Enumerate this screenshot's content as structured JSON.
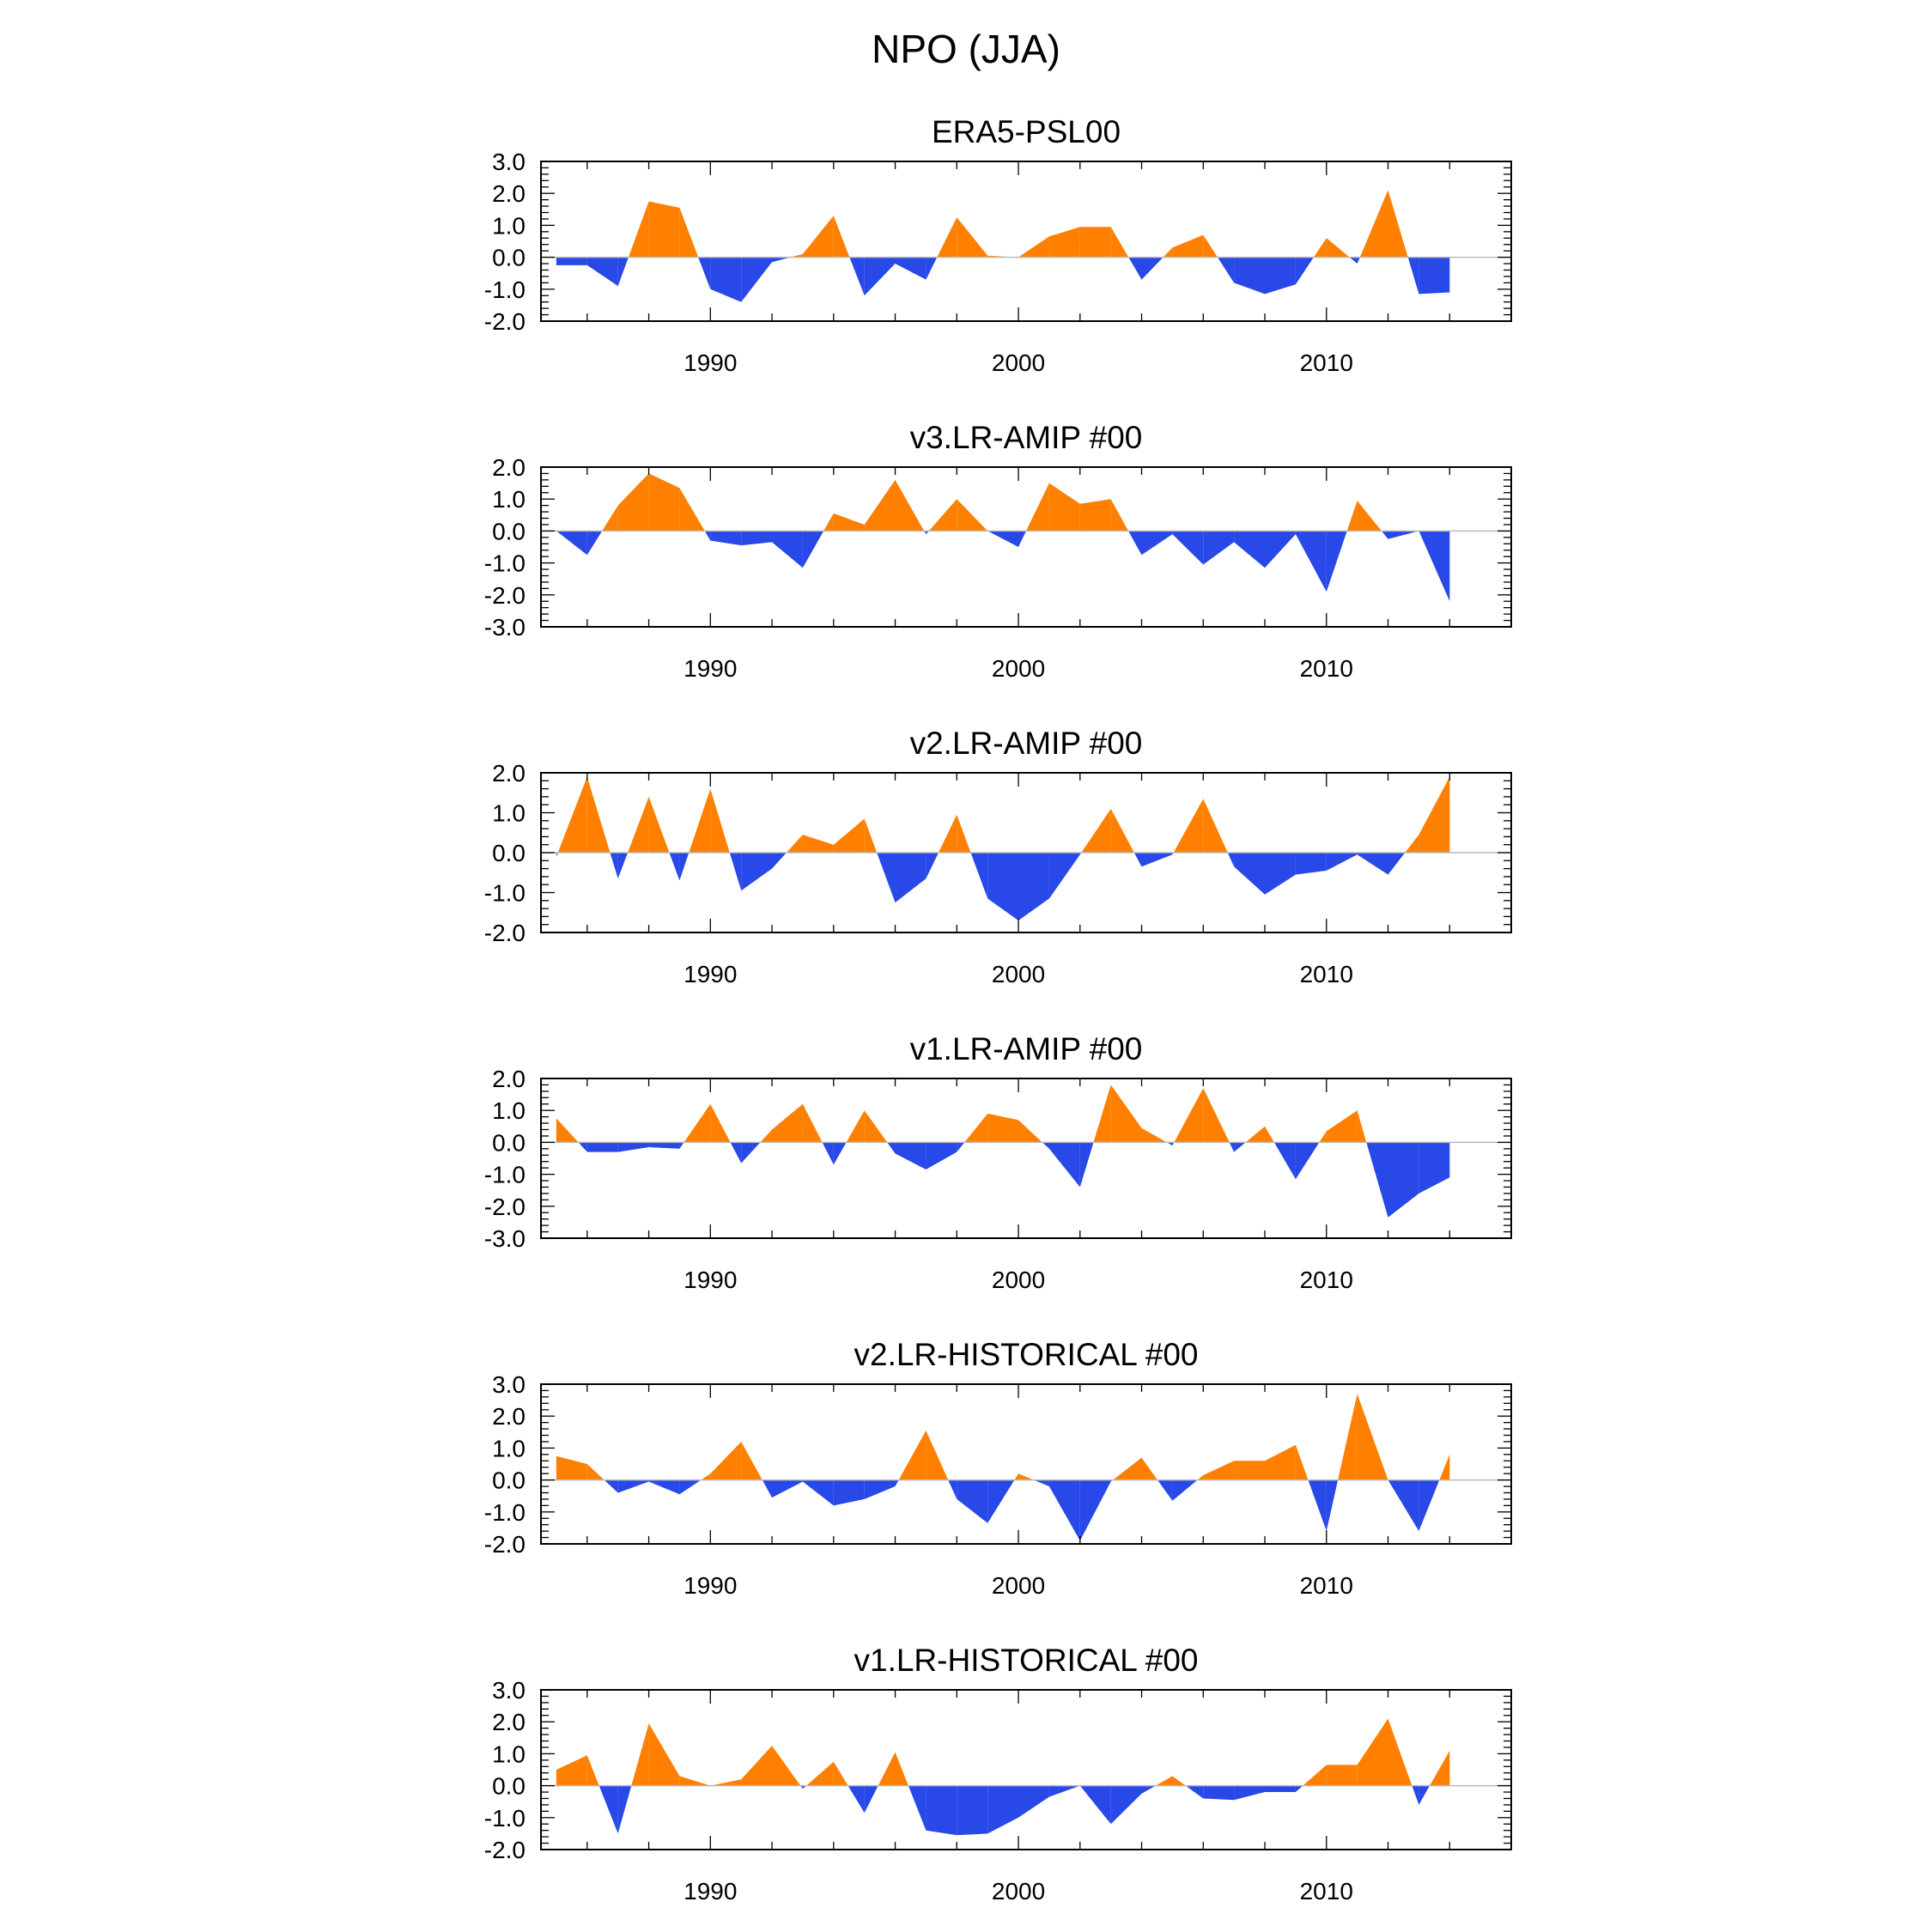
{
  "title": "NPO (JJA)",
  "colors": {
    "positive": "#ff8000",
    "negative": "#2848e8",
    "zero_line": "#bbbbbb",
    "axis": "#000000"
  },
  "chart_data": [
    {
      "type": "area",
      "title": "ERA5-PSL00",
      "x": [
        1985,
        1986,
        1987,
        1988,
        1989,
        1990,
        1991,
        1992,
        1993,
        1994,
        1995,
        1996,
        1997,
        1998,
        1999,
        2000,
        2001,
        2002,
        2003,
        2004,
        2005,
        2006,
        2007,
        2008,
        2009,
        2010,
        2011,
        2012,
        2013,
        2014
      ],
      "values": [
        -0.25,
        -0.25,
        -0.9,
        1.75,
        1.55,
        -1.0,
        -1.4,
        -0.15,
        0.1,
        1.3,
        -1.2,
        -0.2,
        -0.7,
        1.25,
        0.05,
        0.0,
        0.65,
        0.95,
        0.95,
        -0.7,
        0.3,
        0.7,
        -0.8,
        -1.15,
        -0.85,
        0.6,
        -0.2,
        2.1,
        -1.15,
        -1.1
      ],
      "ylim": [
        -2,
        3
      ],
      "yticks": [
        "3.0",
        "2.0",
        "1.0",
        "0.0",
        "-1.0",
        "-2.0"
      ],
      "ytick_values": [
        3,
        2,
        1,
        0,
        -1,
        -2
      ],
      "xlim": [
        1984.5,
        2016
      ],
      "xticks": [
        "1990",
        "2000",
        "2010"
      ],
      "xtick_values": [
        1990,
        2000,
        2010
      ]
    },
    {
      "type": "area",
      "title": "v3.LR-AMIP  #00",
      "x": [
        1985,
        1986,
        1987,
        1988,
        1989,
        1990,
        1991,
        1992,
        1993,
        1994,
        1995,
        1996,
        1997,
        1998,
        1999,
        2000,
        2001,
        2002,
        2003,
        2004,
        2005,
        2006,
        2007,
        2008,
        2009,
        2010,
        2011,
        2012,
        2013,
        2014
      ],
      "values": [
        0.0,
        -0.75,
        0.8,
        1.8,
        1.35,
        -0.3,
        -0.45,
        -0.35,
        -1.15,
        0.55,
        0.2,
        1.6,
        -0.1,
        1.0,
        0.0,
        -0.5,
        1.5,
        0.85,
        1.0,
        -0.75,
        -0.1,
        -1.05,
        -0.35,
        -1.15,
        -0.1,
        -1.9,
        0.95,
        -0.25,
        0.0,
        -2.2
      ],
      "ylim": [
        -3,
        2
      ],
      "yticks": [
        "2.0",
        "1.0",
        "0.0",
        "-1.0",
        "-2.0",
        "-3.0"
      ],
      "ytick_values": [
        2,
        1,
        0,
        -1,
        -2,
        -3
      ],
      "xlim": [
        1984.5,
        2016
      ],
      "xticks": [
        "1990",
        "2000",
        "2010"
      ],
      "xtick_values": [
        1990,
        2000,
        2010
      ]
    },
    {
      "type": "area",
      "title": "v2.LR-AMIP  #00",
      "x": [
        1985,
        1986,
        1987,
        1988,
        1989,
        1990,
        1991,
        1992,
        1993,
        1994,
        1995,
        1996,
        1997,
        1998,
        1999,
        2000,
        2001,
        2002,
        2003,
        2004,
        2005,
        2006,
        2007,
        2008,
        2009,
        2010,
        2011,
        2012,
        2013,
        2014
      ],
      "values": [
        -0.1,
        1.9,
        -0.65,
        1.4,
        -0.7,
        1.6,
        -0.95,
        -0.4,
        0.45,
        0.2,
        0.85,
        -1.25,
        -0.65,
        0.95,
        -1.15,
        -1.7,
        -1.15,
        -0.05,
        1.1,
        -0.35,
        -0.05,
        1.35,
        -0.35,
        -1.05,
        -0.55,
        -0.45,
        -0.05,
        -0.55,
        0.45,
        1.9
      ],
      "ylim": [
        -2,
        2
      ],
      "yticks": [
        "2.0",
        "1.0",
        "0.0",
        "-1.0",
        "-2.0"
      ],
      "ytick_values": [
        2,
        1,
        0,
        -1,
        -2
      ],
      "xlim": [
        1984.5,
        2016
      ],
      "xticks": [
        "1990",
        "2000",
        "2010"
      ],
      "xtick_values": [
        1990,
        2000,
        2010
      ]
    },
    {
      "type": "area",
      "title": "v1.LR-AMIP  #00",
      "x": [
        1985,
        1986,
        1987,
        1988,
        1989,
        1990,
        1991,
        1992,
        1993,
        1994,
        1995,
        1996,
        1997,
        1998,
        1999,
        2000,
        2001,
        2002,
        2003,
        2004,
        2005,
        2006,
        2007,
        2008,
        2009,
        2010,
        2011,
        2012,
        2013,
        2014
      ],
      "values": [
        0.75,
        -0.3,
        -0.3,
        -0.15,
        -0.2,
        1.2,
        -0.65,
        0.4,
        1.2,
        -0.7,
        1.0,
        -0.35,
        -0.85,
        -0.3,
        0.9,
        0.7,
        -0.2,
        -1.4,
        1.8,
        0.45,
        -0.1,
        1.7,
        -0.3,
        0.5,
        -1.15,
        0.35,
        1.0,
        -2.35,
        -1.6,
        -1.1
      ],
      "ylim": [
        -3,
        2
      ],
      "yticks": [
        "2.0",
        "1.0",
        "0.0",
        "-1.0",
        "-2.0",
        "-3.0"
      ],
      "ytick_values": [
        2,
        1,
        0,
        -1,
        -2,
        -3
      ],
      "xlim": [
        1984.5,
        2016
      ],
      "xticks": [
        "1990",
        "2000",
        "2010"
      ],
      "xtick_values": [
        1990,
        2000,
        2010
      ]
    },
    {
      "type": "area",
      "title": "v2.LR-HISTORICAL  #00",
      "x": [
        1985,
        1986,
        1987,
        1988,
        1989,
        1990,
        1991,
        1992,
        1993,
        1994,
        1995,
        1996,
        1997,
        1998,
        1999,
        2000,
        2001,
        2002,
        2003,
        2004,
        2005,
        2006,
        2007,
        2008,
        2009,
        2010,
        2011,
        2012,
        2013,
        2014
      ],
      "values": [
        0.75,
        0.5,
        -0.4,
        -0.05,
        -0.45,
        0.2,
        1.2,
        -0.55,
        -0.05,
        -0.8,
        -0.6,
        -0.2,
        1.55,
        -0.6,
        -1.35,
        0.2,
        -0.2,
        -1.9,
        -0.05,
        0.7,
        -0.65,
        0.15,
        0.6,
        0.6,
        1.1,
        -1.6,
        2.7,
        0.0,
        -1.6,
        0.8
      ],
      "ylim": [
        -2,
        3
      ],
      "yticks": [
        "3.0",
        "2.0",
        "1.0",
        "0.0",
        "-1.0",
        "-2.0"
      ],
      "ytick_values": [
        3,
        2,
        1,
        0,
        -1,
        -2
      ],
      "xlim": [
        1984.5,
        2016
      ],
      "xticks": [
        "1990",
        "2000",
        "2010"
      ],
      "xtick_values": [
        1990,
        2000,
        2010
      ]
    },
    {
      "type": "area",
      "title": "v1.LR-HISTORICAL  #00",
      "x": [
        1985,
        1986,
        1987,
        1988,
        1989,
        1990,
        1991,
        1992,
        1993,
        1994,
        1995,
        1996,
        1997,
        1998,
        1999,
        2000,
        2001,
        2002,
        2003,
        2004,
        2005,
        2006,
        2007,
        2008,
        2009,
        2010,
        2011,
        2012,
        2013,
        2014
      ],
      "values": [
        0.5,
        0.95,
        -1.5,
        1.95,
        0.3,
        0.0,
        0.2,
        1.25,
        -0.1,
        0.75,
        -0.85,
        1.05,
        -1.4,
        -1.55,
        -1.5,
        -1.0,
        -0.35,
        0.0,
        -1.2,
        -0.25,
        0.3,
        -0.4,
        -0.45,
        -0.2,
        -0.2,
        0.65,
        0.65,
        2.1,
        -0.6,
        1.1
      ],
      "ylim": [
        -2,
        3
      ],
      "yticks": [
        "3.0",
        "2.0",
        "1.0",
        "0.0",
        "-1.0",
        "-2.0"
      ],
      "ytick_values": [
        3,
        2,
        1,
        0,
        -1,
        -2
      ],
      "xlim": [
        1984.5,
        2016
      ],
      "xticks": [
        "1990",
        "2000",
        "2010"
      ],
      "xtick_values": [
        1990,
        2000,
        2010
      ]
    }
  ]
}
